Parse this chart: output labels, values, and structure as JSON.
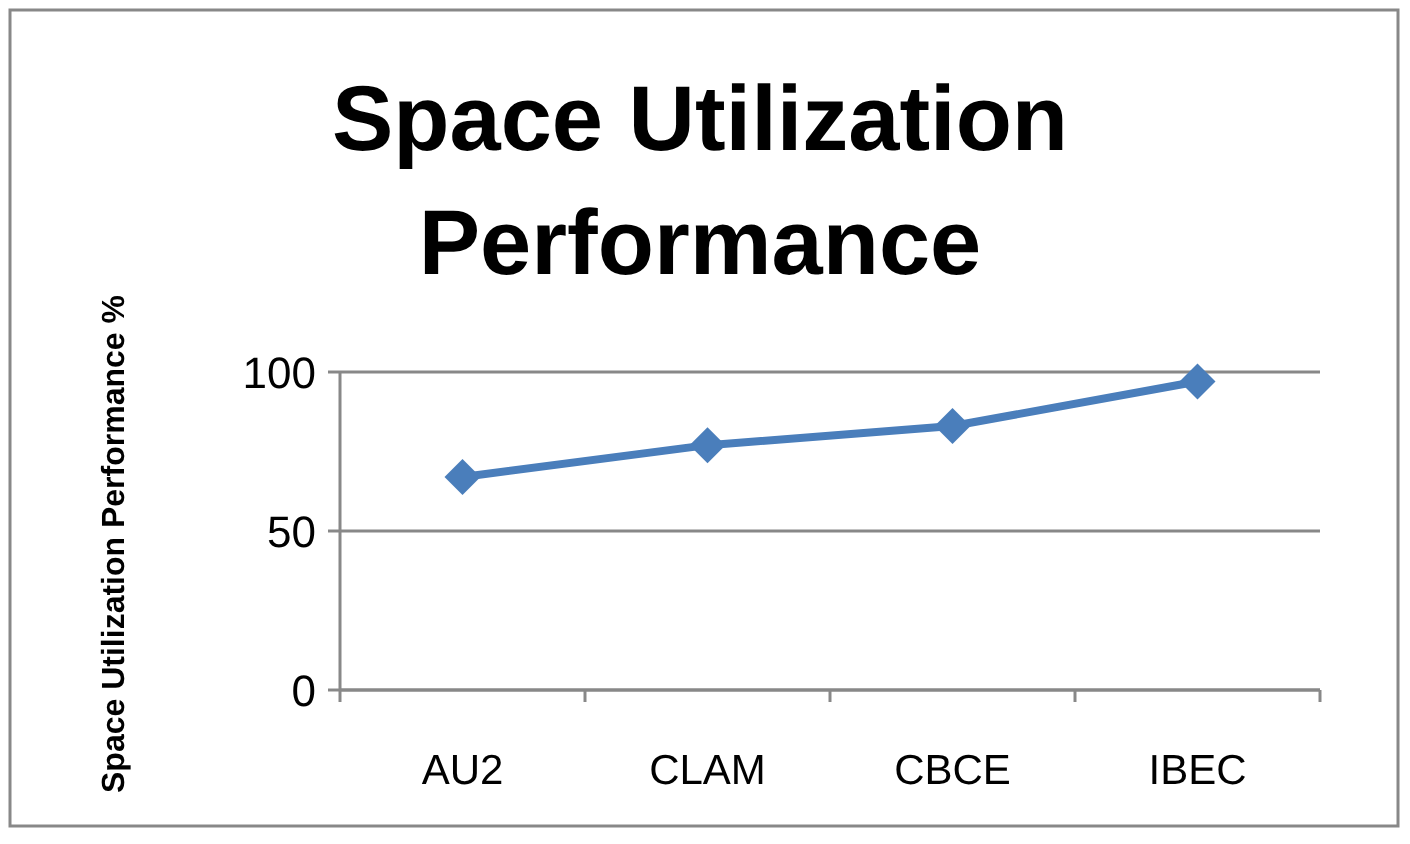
{
  "chart_data": {
    "type": "line",
    "title": "Space Utilization Performance",
    "ylabel": "Space Utilization Performance %",
    "categories": [
      "AU2",
      "CLAM",
      "CBCE",
      "IBEC"
    ],
    "series": [
      {
        "color": "#4a7ebb",
        "values": [
          67,
          77,
          83,
          97
        ]
      }
    ],
    "ylim": [
      0,
      100
    ],
    "yticks": [
      0,
      50,
      100
    ],
    "grid": "y",
    "marker": "diamond",
    "line_style": "solid"
  }
}
